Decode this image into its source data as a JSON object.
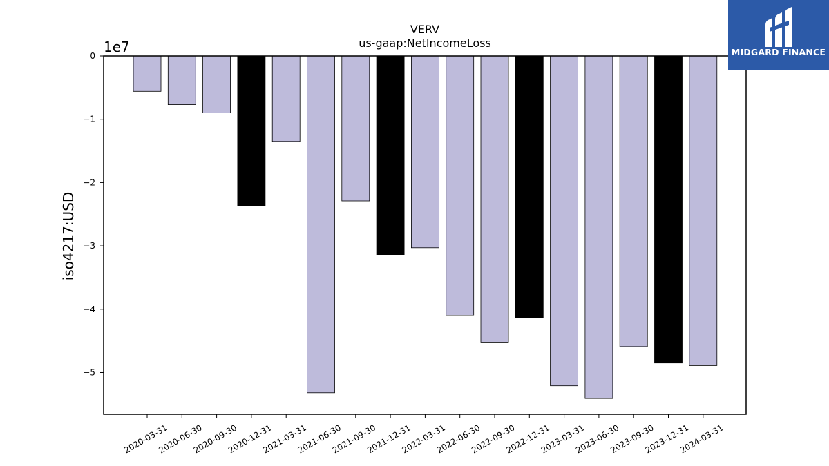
{
  "logo": {
    "text": "MIDGARD FINANCE",
    "icon": "midgard-logo-icon",
    "background": "#2c5aa8"
  },
  "chart_data": {
    "type": "bar",
    "title": "VERV",
    "subtitle": "us-gaap:NetIncomeLoss",
    "xlabel": "",
    "ylabel": "iso4217:USD",
    "y_offset_label": "1e7",
    "ylim": [
      -56600000,
      0
    ],
    "yticks": [
      0,
      -10000000,
      -20000000,
      -30000000,
      -40000000,
      -50000000
    ],
    "ytick_labels": [
      "0",
      "−1",
      "−2",
      "−3",
      "−4",
      "−5"
    ],
    "grid": false,
    "legend": "none",
    "colors": {
      "quarter": "#bebbdb",
      "year_end": "#000000",
      "edge": "#000000"
    },
    "categories": [
      "2020-03-31",
      "2020-06-30",
      "2020-09-30",
      "2020-12-31",
      "2021-03-31",
      "2021-06-30",
      "2021-09-30",
      "2021-12-31",
      "2022-03-31",
      "2022-06-30",
      "2022-09-30",
      "2022-12-31",
      "2023-03-31",
      "2023-06-30",
      "2023-09-30",
      "2023-12-31",
      "2024-03-31"
    ],
    "values": [
      -5600000,
      -7700000,
      -9000000,
      -23700000,
      -13500000,
      -53200000,
      -22900000,
      -31400000,
      -30300000,
      -41000000,
      -45300000,
      -41300000,
      -52100000,
      -54100000,
      -45900000,
      -48500000,
      -48900000
    ],
    "highlight": [
      false,
      false,
      false,
      true,
      false,
      false,
      false,
      true,
      false,
      false,
      false,
      true,
      false,
      false,
      false,
      true,
      false
    ]
  }
}
